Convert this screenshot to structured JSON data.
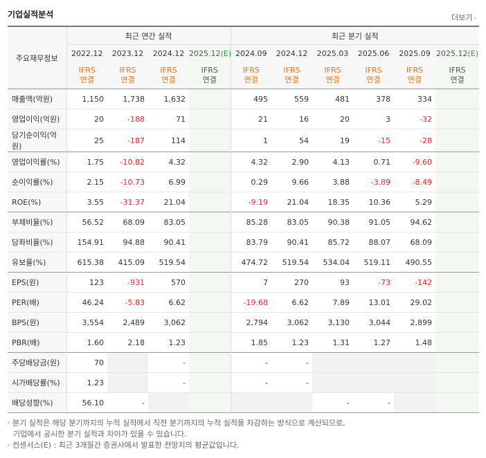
{
  "header": {
    "title": "기업실적분석",
    "more_label": "더보기",
    "more_arrow": "›"
  },
  "table": {
    "corner_label": "주요재무정보",
    "group_annual": "최근 연간 실적",
    "group_quarter": "최근 분기 실적",
    "periods": [
      "2022.12",
      "2023.12",
      "2024.12",
      "2025.12(E)",
      "2024.09",
      "2024.12",
      "2025.03",
      "2025.06",
      "2025.09",
      "2025.12(E)"
    ],
    "ifrs_top": "IFRS",
    "ifrs_bottom": "연결",
    "rows": [
      {
        "label": "매출액(억원)",
        "values": [
          "1,150",
          "1,738",
          "1,632",
          "",
          "495",
          "559",
          "481",
          "378",
          "334",
          ""
        ]
      },
      {
        "label": "영업이익(억원)",
        "values": [
          "20",
          "-188",
          "71",
          "",
          "21",
          "16",
          "20",
          "3",
          "-32",
          ""
        ]
      },
      {
        "label": "당기순이익(억원)",
        "values": [
          "25",
          "-187",
          "114",
          "",
          "1",
          "54",
          "19",
          "-15",
          "-28",
          ""
        ]
      },
      {
        "label": "영업이익률(%)",
        "values": [
          "1.75",
          "-10.82",
          "4.32",
          "",
          "4.32",
          "2.90",
          "4.13",
          "0.71",
          "-9.60",
          ""
        ]
      },
      {
        "label": "순이익률(%)",
        "values": [
          "2.15",
          "-10.73",
          "6.99",
          "",
          "0.29",
          "9.66",
          "3.88",
          "-3.89",
          "-8.49",
          ""
        ]
      },
      {
        "label": "ROE(%)",
        "values": [
          "3.55",
          "-31.37",
          "21.04",
          "",
          "-9.19",
          "21.04",
          "18.35",
          "10.36",
          "5.29",
          ""
        ]
      },
      {
        "label": "부채비율(%)",
        "values": [
          "56.52",
          "68.09",
          "83.05",
          "",
          "85.28",
          "83.05",
          "90.38",
          "91.05",
          "94.62",
          ""
        ]
      },
      {
        "label": "당좌비율(%)",
        "values": [
          "154.91",
          "94.88",
          "90.41",
          "",
          "83.79",
          "90.41",
          "85.72",
          "88.07",
          "68.09",
          ""
        ]
      },
      {
        "label": "유보율(%)",
        "values": [
          "615.38",
          "415.09",
          "519.54",
          "",
          "474.72",
          "519.54",
          "534.04",
          "519.11",
          "490.55",
          ""
        ]
      },
      {
        "label": "EPS(원)",
        "values": [
          "123",
          "-931",
          "570",
          "",
          "7",
          "270",
          "93",
          "-73",
          "-142",
          ""
        ]
      },
      {
        "label": "PER(배)",
        "values": [
          "46.24",
          "-5.83",
          "6.62",
          "",
          "-19.68",
          "6.62",
          "7.89",
          "13.01",
          "29.02",
          ""
        ]
      },
      {
        "label": "BPS(원)",
        "values": [
          "3,554",
          "2,489",
          "3,062",
          "",
          "2,794",
          "3,062",
          "3,130",
          "3,044",
          "2,899",
          ""
        ]
      },
      {
        "label": "PBR(배)",
        "values": [
          "1.60",
          "2.18",
          "1.23",
          "",
          "1.85",
          "1.23",
          "1.31",
          "1.27",
          "1.48",
          ""
        ]
      },
      {
        "label": "주당배당금(원)",
        "values": [
          "70",
          "",
          "-",
          "",
          "-",
          "-",
          "",
          "",
          "",
          ""
        ]
      },
      {
        "label": "시가배당률(%)",
        "values": [
          "1.23",
          "",
          "-",
          "",
          "-",
          "-",
          "",
          "",
          "",
          ""
        ]
      },
      {
        "label": "배당성향(%)",
        "values": [
          "56.10",
          "-",
          "",
          "",
          "",
          "",
          "-",
          "-",
          "",
          ""
        ]
      }
    ]
  },
  "notes": {
    "line1": "· 분기 실적은 해당 분기까지의 누적 실적에서 직전 분기까지의 누적 실적을 차감하는 방식으로 계산되므로,",
    "line2": "기업에서 공시한 분기 실적과 차이가 있을 수 있습니다.",
    "line3": "· 컨센서스(E) : 최근 3개월간 증권사에서 발표한 전망치의 평균값입니다."
  },
  "colors": {
    "negative": "#e6262d",
    "ifrs": "#e8751a",
    "estimate_bg": "#f3f8f3"
  }
}
